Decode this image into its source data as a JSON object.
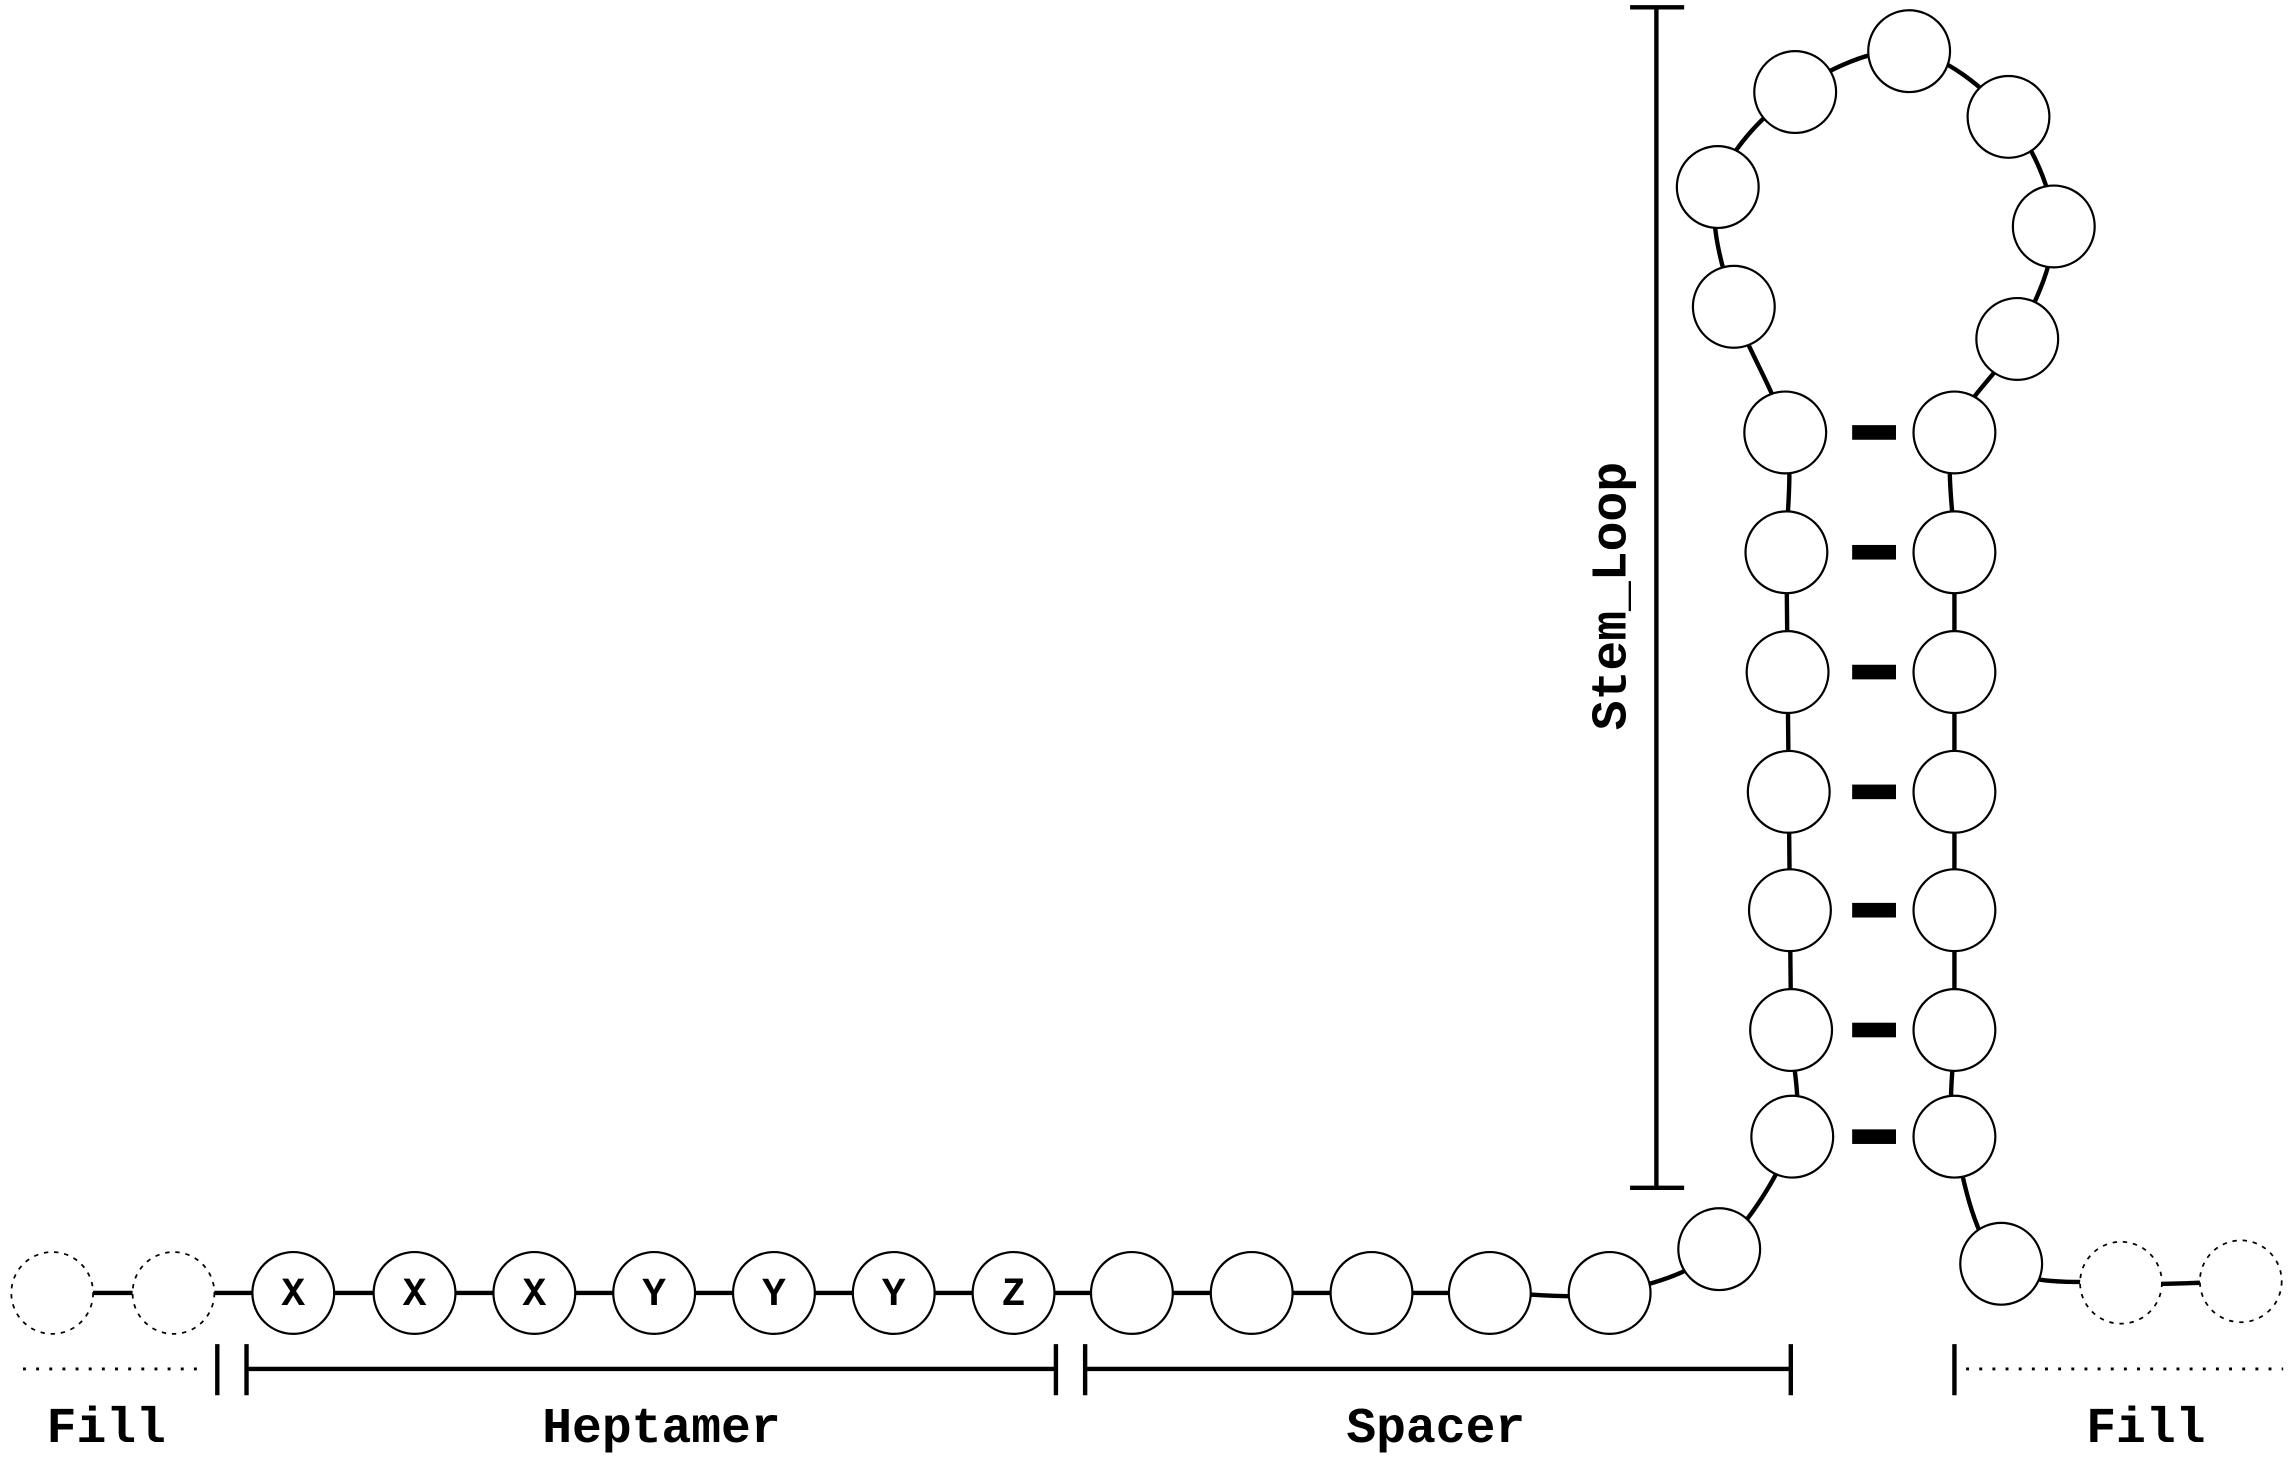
{
  "segments": [
    {
      "label": "Fill"
    },
    {
      "label": "Heptamer"
    },
    {
      "label": "Spacer"
    },
    {
      "label": "Fill"
    }
  ],
  "stem_label": "Stem_Loop",
  "heptamer_bases": [
    "X",
    "X",
    "X",
    "Y",
    "Y",
    "Y",
    "Z"
  ]
}
